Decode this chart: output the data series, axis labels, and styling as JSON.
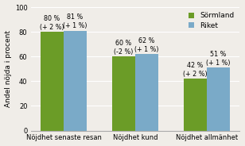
{
  "categories": [
    "Nöjdhet senaste resan",
    "Nöjdhet kund",
    "Nöjdhet allmänhet"
  ],
  "sormland_values": [
    80,
    60,
    42
  ],
  "riket_values": [
    81,
    62,
    51
  ],
  "sormland_labels": [
    "80 %\n(+ 2 %)",
    "60 %\n(-2 %)",
    "42 %\n(+ 2 %)"
  ],
  "riket_labels": [
    "81 %\n(+ 1 %)",
    "62 %\n(+ 1 %)",
    "51 %\n(+ 1 %)"
  ],
  "sormland_color": "#6b9c27",
  "riket_color": "#7aaac8",
  "ylabel": "Andel nöjda i procent",
  "ylim": [
    0,
    100
  ],
  "yticks": [
    0,
    20,
    40,
    60,
    80,
    100
  ],
  "legend_sormland": "Sörmland",
  "legend_riket": "Riket",
  "bar_width": 0.32,
  "label_fontsize": 5.8,
  "axis_fontsize": 6.5,
  "legend_fontsize": 6.5,
  "tick_fontsize": 6.0,
  "bg_color": "#f0ede8"
}
